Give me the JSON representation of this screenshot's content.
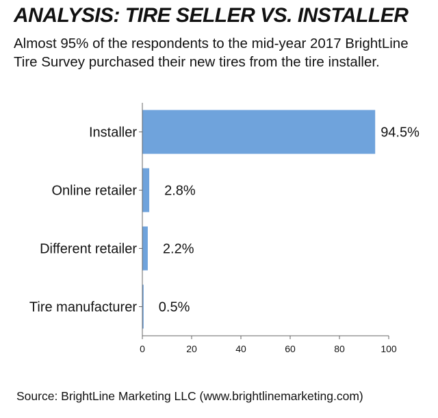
{
  "header": {
    "title": "ANALYSIS: TIRE SELLER VS. INSTALLER",
    "subtitle": "Almost 95% of the respondents to the mid-year 2017 BrightLine Tire Survey purchased their new tires from the tire installer."
  },
  "footer": {
    "source": "Source: BrightLine Marketing LLC (www.brightlinemarketing.com)"
  },
  "colors": {
    "bar": "#6fa3dc",
    "axis": "#666666"
  },
  "chart_data": {
    "type": "bar",
    "orientation": "horizontal",
    "title": "ANALYSIS: TIRE SELLER VS. INSTALLER",
    "categories": [
      "Installer",
      "Online retailer",
      "Different retailer",
      "Tire manufacturer"
    ],
    "values": [
      94.5,
      2.8,
      2.2,
      0.5
    ],
    "value_labels": [
      "94.5%",
      "2.8%",
      "2.2%",
      "0.5%"
    ],
    "xlim": [
      0,
      100
    ],
    "xticks": [
      0,
      20,
      40,
      60,
      80,
      100
    ],
    "xlabel": "",
    "ylabel": "",
    "grid": false,
    "legend": "none"
  }
}
